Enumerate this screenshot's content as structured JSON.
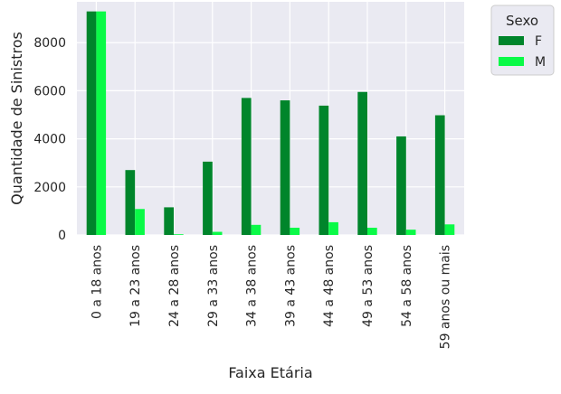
{
  "chart_data": {
    "type": "bar",
    "title": "",
    "xlabel": "Faixa Etária",
    "ylabel": "Quantidade de Sinistros",
    "categories": [
      "0 a 18 anos",
      "19 a 23 anos",
      "24 a 28 anos",
      "29 a 33 anos",
      "34 a 38 anos",
      "39 a 43 anos",
      "44 a 48 anos",
      "49 a 53 anos",
      "54 a 58 anos",
      "59 anos ou mais"
    ],
    "series": [
      {
        "name": "F",
        "color": "#00852b",
        "values": [
          9300,
          2700,
          1150,
          3050,
          5700,
          5600,
          5380,
          5950,
          4100,
          4980
        ]
      },
      {
        "name": "M",
        "color": "#0afa47",
        "values": [
          9300,
          1080,
          30,
          130,
          420,
          300,
          530,
          300,
          220,
          440
        ]
      }
    ],
    "ylim": [
      0,
      9700
    ],
    "yticks": [
      0,
      2000,
      4000,
      6000,
      8000
    ],
    "grid": true,
    "legend": {
      "title": "Sexo",
      "placement": "outside-top-right"
    }
  }
}
